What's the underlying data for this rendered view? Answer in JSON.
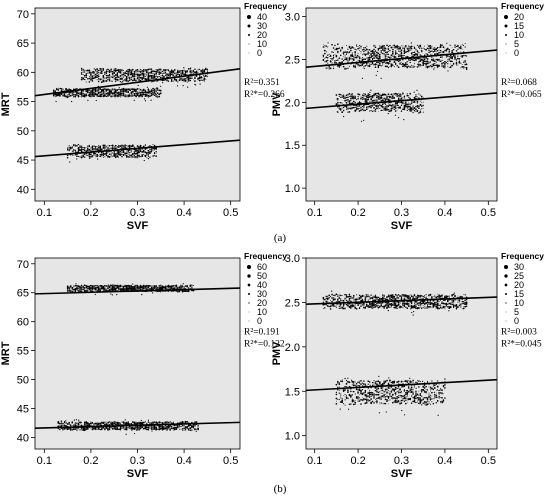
{
  "captions": [
    "(a)",
    "(b)"
  ],
  "colors": {
    "plot_bg": "#e6e6e6",
    "points": "#000000",
    "fit_line": "#000000"
  },
  "chart_data": [
    {
      "type": "scatter",
      "xlabel": "SVF",
      "ylabel": "MRT",
      "xlim": [
        0.08,
        0.52
      ],
      "ylim": [
        38,
        71
      ],
      "xticks": [
        "0.1",
        "0.2",
        "0.3",
        "0.4",
        "0.5"
      ],
      "yticks": [
        "40",
        "45",
        "50",
        "55",
        "60",
        "65",
        "70"
      ],
      "legend": {
        "title": "Frequency",
        "entries": [
          "40",
          "30",
          "20",
          "10",
          "0"
        ]
      },
      "r2": "R²=0.351",
      "r2_adj": "R²*=0.266",
      "fit_lines": [
        {
          "x": [
            0.08,
            0.52
          ],
          "y": [
            56.0,
            60.6
          ]
        },
        {
          "x": [
            0.08,
            0.52
          ],
          "y": [
            45.6,
            48.4
          ]
        }
      ],
      "clusters": [
        {
          "x": [
            0.18,
            0.45
          ],
          "y": [
            58.0,
            61.0
          ]
        },
        {
          "x": [
            0.12,
            0.35
          ],
          "y": [
            55.5,
            57.5
          ]
        },
        {
          "x": [
            0.15,
            0.34
          ],
          "y": [
            45.0,
            48.0
          ]
        }
      ]
    },
    {
      "type": "scatter",
      "xlabel": "SVF",
      "ylabel": "PMV",
      "xlim": [
        0.08,
        0.52
      ],
      "ylim": [
        0.85,
        3.1
      ],
      "xticks": [
        "0.1",
        "0.2",
        "0.3",
        "0.4",
        "0.5"
      ],
      "yticks": [
        "1.0",
        "1.5",
        "2.0",
        "2.5",
        "3.0"
      ],
      "legend": {
        "title": "Frequency",
        "entries": [
          "20",
          "15",
          "10",
          "5",
          "0"
        ]
      },
      "r2": "R²=0.068",
      "r2_adj": "R²*=0.065",
      "fit_lines": [
        {
          "x": [
            0.08,
            0.52
          ],
          "y": [
            2.41,
            2.61
          ]
        },
        {
          "x": [
            0.08,
            0.52
          ],
          "y": [
            1.93,
            2.11
          ]
        }
      ],
      "clusters": [
        {
          "x": [
            0.12,
            0.45
          ],
          "y": [
            2.35,
            2.72
          ]
        },
        {
          "x": [
            0.15,
            0.35
          ],
          "y": [
            1.85,
            2.15
          ]
        }
      ]
    },
    {
      "type": "scatter",
      "xlabel": "SVF",
      "ylabel": "MRT",
      "xlim": [
        0.08,
        0.52
      ],
      "ylim": [
        38,
        71
      ],
      "xticks": [
        "0.1",
        "0.2",
        "0.3",
        "0.4",
        "0.5"
      ],
      "yticks": [
        "40",
        "45",
        "50",
        "55",
        "60",
        "65",
        "70"
      ],
      "legend": {
        "title": "Frequency",
        "entries": [
          "60",
          "50",
          "40",
          "30",
          "20",
          "10",
          "0"
        ]
      },
      "r2": "R²=0.191",
      "r2_adj": "R²*=0.122",
      "fit_lines": [
        {
          "x": [
            0.08,
            0.52
          ],
          "y": [
            64.8,
            65.8
          ]
        },
        {
          "x": [
            0.08,
            0.52
          ],
          "y": [
            41.6,
            42.6
          ]
        }
      ],
      "clusters": [
        {
          "x": [
            0.15,
            0.42
          ],
          "y": [
            65.0,
            66.5
          ]
        },
        {
          "x": [
            0.13,
            0.43
          ],
          "y": [
            41.0,
            43.0
          ]
        }
      ]
    },
    {
      "type": "scatter",
      "xlabel": "SVF",
      "ylabel": "PMV",
      "xlim": [
        0.08,
        0.52
      ],
      "ylim": [
        0.85,
        3.0
      ],
      "xticks": [
        "0.1",
        "0.2",
        "0.3",
        "0.4",
        "0.5"
      ],
      "yticks": [
        "1.0",
        "1.5",
        "2.0",
        "2.5",
        "3.0"
      ],
      "legend": {
        "title": "Frequency",
        "entries": [
          "30",
          "25",
          "20",
          "15",
          "10",
          "5",
          "0"
        ]
      },
      "r2": "R²=0.003",
      "r2_adj": "R²*=0.045",
      "fit_lines": [
        {
          "x": [
            0.08,
            0.52
          ],
          "y": [
            2.48,
            2.56
          ]
        },
        {
          "x": [
            0.08,
            0.52
          ],
          "y": [
            1.51,
            1.63
          ]
        }
      ],
      "clusters": [
        {
          "x": [
            0.12,
            0.45
          ],
          "y": [
            2.4,
            2.62
          ]
        },
        {
          "x": [
            0.15,
            0.4
          ],
          "y": [
            1.3,
            1.68
          ]
        }
      ]
    }
  ]
}
